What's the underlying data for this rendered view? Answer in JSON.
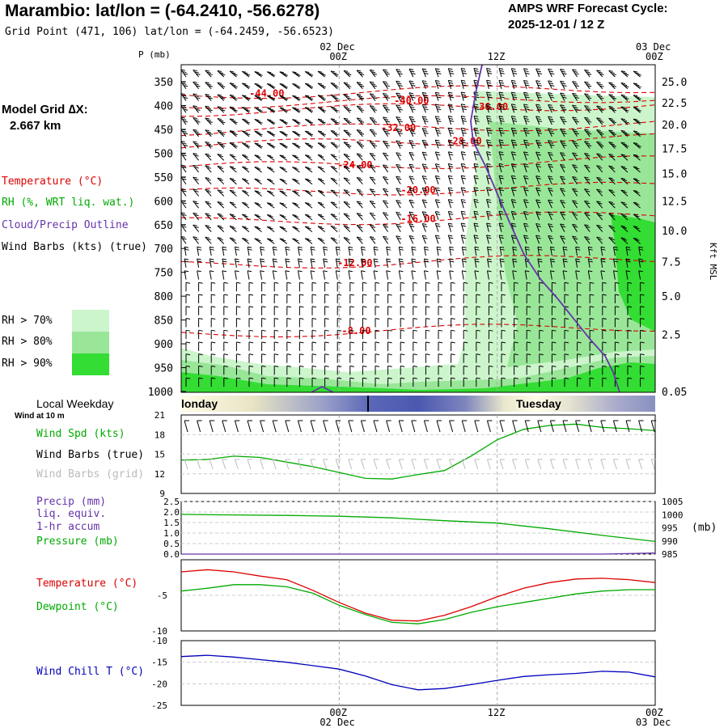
{
  "header": {
    "title": "Marambio:  lat/lon = (-64.2410, -56.6278)",
    "grid_point": "Grid Point (471, 106) lat/lon = (-64.2459, -56.6523)",
    "cycle_line1": "AMPS WRF Forecast Cycle:",
    "cycle_line2": "2025-12-01 / 12  Z"
  },
  "top_time_axis": {
    "ticks": [
      {
        "label": "00Z",
        "date": "02 Dec"
      },
      {
        "label": "12Z",
        "date": ""
      },
      {
        "label": "00Z",
        "date": "03 Dec"
      }
    ]
  },
  "left_panel": {
    "model_grid_label": "Model Grid ∆X:",
    "model_grid_value": "2.667 km",
    "legend_temperature": "Temperature (°C)",
    "legend_rh": "RH (%, WRT liq. wat.)",
    "legend_cloud": "Cloud/Precip Outline",
    "legend_wind": "Wind Barbs (kts) (true)",
    "rh_levels": [
      {
        "label": "RH > 70%",
        "color": "#ccf5cc"
      },
      {
        "label": "RH > 80%",
        "color": "#99e699"
      },
      {
        "label": "RH > 90%",
        "color": "#33dd33"
      }
    ],
    "local_weekday": "Local Weekday",
    "wind_at_10m": "Wind at 10 m",
    "wind_spd_label": "Wind Spd (kts)",
    "wind_barbs_true": "Wind Barbs (true)",
    "wind_barbs_grid": "Wind Barbs (grid)",
    "precip_label_1": "Precip (mm)",
    "precip_label_2": "liq. equiv.",
    "precip_label_3": "1-hr accum",
    "pressure_label": "Pressure (mb)",
    "temp_label": "Temperature (°C)",
    "dewpoint_label": "Dewpoint (°C)",
    "windchill_label": "Wind Chill T (°C)",
    "pressure_unit": "(mb)"
  },
  "weekday_bar": {
    "left_label": "londay",
    "right_label": "Tuesday"
  },
  "colors": {
    "temperature": "#dd0000",
    "rh": "#00aa00",
    "cloud": "#6633aa",
    "windchill": "#0000bb",
    "barb_grid": "#bbbbbb"
  },
  "chart_data": [
    {
      "type": "contour",
      "name": "time-height cross section",
      "y_axis_label": "P (mb)",
      "y_right_label": "Kft MSL",
      "pressure_levels": [
        350,
        400,
        450,
        500,
        550,
        600,
        650,
        700,
        750,
        800,
        850,
        900,
        950,
        1000
      ],
      "pressure_tick_labels": [
        "350",
        "400",
        "450",
        "500",
        "550",
        "600",
        "650",
        "700",
        "750",
        "800",
        "850",
        "900",
        "950",
        "1000"
      ],
      "height_ticks": [
        {
          "label": "25.0",
          "p": 350
        },
        {
          "label": "22.5",
          "p": 394
        },
        {
          "label": "20.0",
          "p": 440
        },
        {
          "label": "17.5",
          "p": 490
        },
        {
          "label": "15.0",
          "p": 543
        },
        {
          "label": "12.5",
          "p": 600
        },
        {
          "label": "10.0",
          "p": 662
        },
        {
          "label": "7.5",
          "p": 728
        },
        {
          "label": "5.0",
          "p": 800
        },
        {
          "label": "2.5",
          "p": 880
        },
        {
          "label": "0.05",
          "p": 1000
        }
      ],
      "forecast_hours": [
        0,
        12,
        24,
        36
      ],
      "temperature_labels": [
        {
          "label": "-44.00",
          "t": 6.5,
          "p": 375
        },
        {
          "label": "-40.00",
          "t": 17.5,
          "p": 390
        },
        {
          "label": "-36.00",
          "t": 23.5,
          "p": 403
        },
        {
          "label": "-32.00",
          "t": 16.5,
          "p": 447
        },
        {
          "label": "-28.00",
          "t": 21.5,
          "p": 475
        },
        {
          "label": "-24.00",
          "t": 13.2,
          "p": 525
        },
        {
          "label": "-20.00",
          "t": 18,
          "p": 577
        },
        {
          "label": "-16.00",
          "t": 18,
          "p": 638
        },
        {
          "label": "-12.00",
          "t": 13.2,
          "p": 730
        },
        {
          "label": "-8.00",
          "t": 13.3,
          "p": 873
        }
      ],
      "x_tick_labels": [
        "00Z",
        "12Z",
        "00Z"
      ]
    },
    {
      "type": "line",
      "name": "wind speed",
      "x": [
        0,
        2,
        4,
        6,
        8,
        10,
        12,
        14,
        16,
        18,
        20,
        22,
        24,
        26,
        28,
        30,
        32,
        34,
        36
      ],
      "series": [
        {
          "name": "Wind Spd (kts)",
          "values": [
            14.1,
            14.2,
            14.7,
            14.5,
            13.8,
            13.1,
            12.2,
            11.3,
            11.2,
            11.9,
            12.5,
            14.7,
            17.2,
            18.8,
            19.4,
            19.6,
            19.1,
            18.9,
            18.6
          ]
        }
      ],
      "yticks": [
        "9",
        "12",
        "15",
        "18",
        "21"
      ],
      "ylim": [
        9,
        21
      ]
    },
    {
      "type": "line",
      "name": "precip and pressure",
      "x": [
        0,
        4,
        8,
        12,
        16,
        20,
        24,
        28,
        32,
        36
      ],
      "series": [
        {
          "name": "Pressure (mb)",
          "values": [
            1000.1,
            999.9,
            999.7,
            999.4,
            998.8,
            997.7,
            996.8,
            994.6,
            992.1,
            989.8
          ]
        },
        {
          "name": "Precip (mm)",
          "values": [
            0,
            0,
            0,
            0,
            0,
            0,
            0,
            0,
            0,
            0.05
          ]
        }
      ],
      "left_ticks": [
        "0.0",
        "0.5",
        "1.0",
        "1.5",
        "2.0",
        "2.5"
      ],
      "right_ticks": [
        "985",
        "990",
        "995",
        "1000",
        "1005"
      ],
      "ylim_precip": [
        0,
        2.5
      ],
      "ylim_pressure": [
        985,
        1005
      ]
    },
    {
      "type": "line",
      "name": "temperature and dewpoint",
      "x": [
        0,
        2,
        4,
        6,
        8,
        10,
        12,
        14,
        16,
        18,
        20,
        22,
        24,
        26,
        28,
        30,
        32,
        34,
        36
      ],
      "series": [
        {
          "name": "Temperature (°C)",
          "values": [
            -1.7,
            -1.4,
            -1.7,
            -2.3,
            -2.8,
            -4.3,
            -6.0,
            -7.5,
            -8.5,
            -8.6,
            -7.8,
            -6.6,
            -5.2,
            -4.0,
            -3.2,
            -2.7,
            -2.6,
            -2.8,
            -3.2
          ]
        },
        {
          "name": "Dewpoint (°C)",
          "values": [
            -4.4,
            -4.0,
            -3.5,
            -3.5,
            -3.8,
            -4.7,
            -6.4,
            -7.7,
            -8.8,
            -9.0,
            -8.4,
            -7.4,
            -6.6,
            -6.0,
            -5.4,
            -4.8,
            -4.4,
            -4.2,
            -4.2
          ]
        }
      ],
      "yticks": [
        "-10",
        "-5"
      ],
      "ylim": [
        -10,
        0
      ]
    },
    {
      "type": "line",
      "name": "wind chill",
      "x": [
        0,
        2,
        4,
        6,
        8,
        10,
        12,
        14,
        16,
        18,
        20,
        22,
        24,
        26,
        28,
        30,
        32,
        34,
        36
      ],
      "series": [
        {
          "name": "Wind Chill T (°C)",
          "values": [
            -13.7,
            -13.4,
            -13.8,
            -14.4,
            -15.0,
            -15.8,
            -16.6,
            -18.2,
            -20.2,
            -21.4,
            -21.1,
            -20.2,
            -19.2,
            -18.3,
            -17.9,
            -17.6,
            -17.1,
            -17.3,
            -18.4
          ]
        }
      ],
      "yticks": [
        "-25",
        "-20",
        "-15",
        "-10"
      ],
      "ylim": [
        -25,
        -10
      ],
      "x_tick_labels": [
        {
          "label": "00Z",
          "date": "02 Dec"
        },
        {
          "label": "12Z",
          "date": ""
        },
        {
          "label": "00Z",
          "date": "03 Dec"
        }
      ]
    }
  ]
}
